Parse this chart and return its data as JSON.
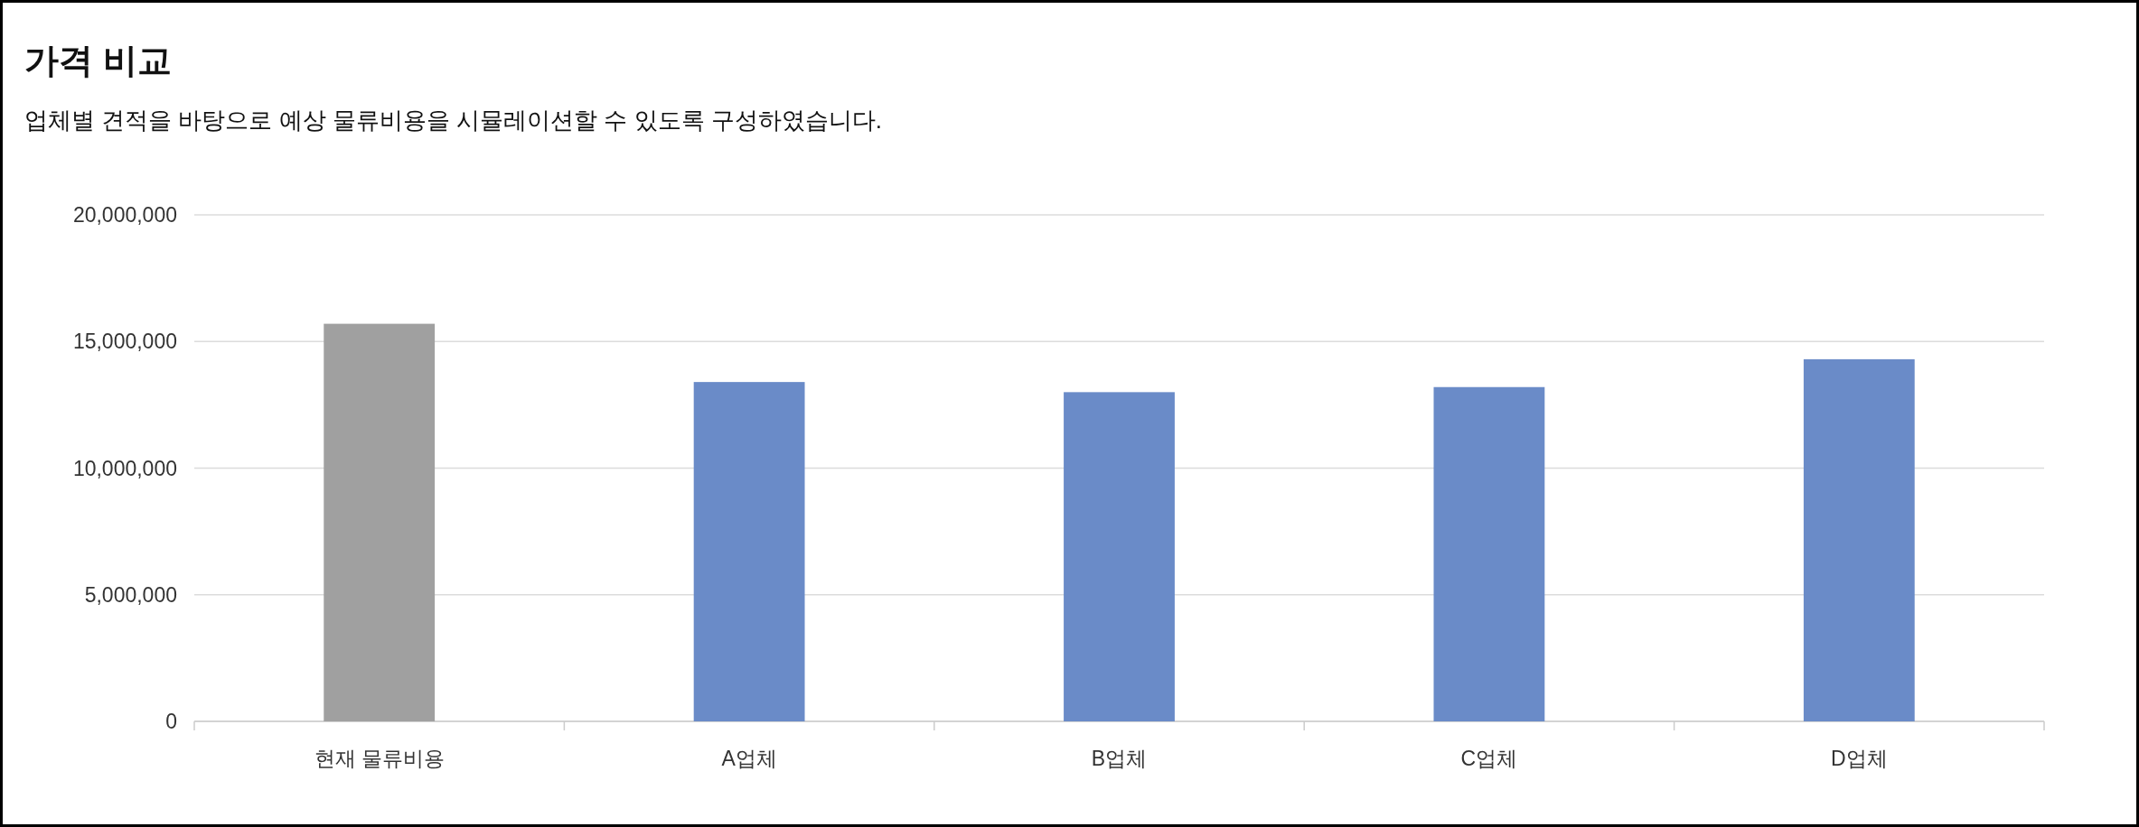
{
  "chart_data": {
    "type": "bar",
    "title": "가격 비교",
    "subtitle": "업체별 견적을 바탕으로 예상 물류비용을 시뮬레이션할 수 있도록 구성하였습니다.",
    "categories": [
      "현재 물류비용",
      "A업체",
      "B업체",
      "C업체",
      "D업체"
    ],
    "values": [
      15700000,
      13400000,
      13000000,
      13200000,
      14300000
    ],
    "colors": [
      "#a0a0a0",
      "#6a8bc8",
      "#6a8bc8",
      "#6a8bc8",
      "#6a8bc8"
    ],
    "ylim": [
      0,
      20000000
    ],
    "yticks": [
      {
        "value": 0,
        "label": "0"
      },
      {
        "value": 5000000,
        "label": "5,000,000"
      },
      {
        "value": 10000000,
        "label": "10,000,000"
      },
      {
        "value": 15000000,
        "label": "15,000,000"
      },
      {
        "value": 20000000,
        "label": "20,000,000"
      }
    ],
    "grid": "y"
  }
}
